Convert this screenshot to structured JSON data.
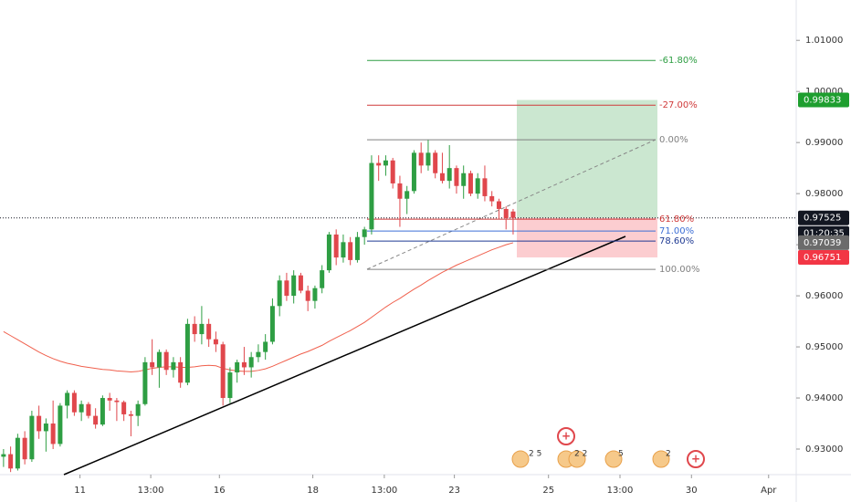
{
  "chart_data": {
    "type": "candlestick",
    "xlim": [
      -0.5,
      112
    ],
    "ylim": [
      0.925,
      1.0179
    ],
    "xticks": [
      {
        "value": 10.8,
        "label": "11"
      },
      {
        "value": 20.8,
        "label": "13:00"
      },
      {
        "value": 30.5,
        "label": "16"
      },
      {
        "value": 43.7,
        "label": "18"
      },
      {
        "value": 53.8,
        "label": "13:00"
      },
      {
        "value": 63.7,
        "label": "23"
      },
      {
        "value": 77,
        "label": "25"
      },
      {
        "value": 87.1,
        "label": "13:00"
      },
      {
        "value": 97.2,
        "label": "30"
      },
      {
        "value": 108.1,
        "label": "Apr"
      }
    ],
    "yticks": [
      {
        "value": 0.93,
        "label": "0.93000"
      },
      {
        "value": 0.94,
        "label": "0.94000"
      },
      {
        "value": 0.95,
        "label": "0.95000"
      },
      {
        "value": 0.96,
        "label": "0.96000"
      },
      {
        "value": 0.97,
        "label": "0.97000"
      },
      {
        "value": 0.98,
        "label": "0.98000"
      },
      {
        "value": 0.99,
        "label": "0.99000"
      },
      {
        "value": 1.0,
        "label": "1.00000"
      },
      {
        "value": 1.01,
        "label": "1.01000"
      }
    ],
    "up_color": "#2e9e43",
    "down_color": "#e0474c",
    "open": [
      0.9285,
      0.929,
      0.9262,
      0.9322,
      0.928,
      0.9365,
      0.9335,
      0.935,
      0.931,
      0.9385,
      0.941,
      0.9372,
      0.9388,
      0.9365,
      0.9348,
      0.94,
      0.9395,
      0.9392,
      0.9368,
      0.9365,
      0.9388,
      0.947,
      0.946,
      0.949,
      0.9455,
      0.947,
      0.943,
      0.9545,
      0.9525,
      0.9545,
      0.9515,
      0.9505,
      0.94,
      0.945,
      0.947,
      0.946,
      0.948,
      0.949,
      0.951,
      0.958,
      0.963,
      0.96,
      0.964,
      0.961,
      0.959,
      0.9615,
      0.965,
      0.972,
      0.9675,
      0.9705,
      0.967,
      0.9715,
      0.973,
      0.986,
      0.9855,
      0.9865,
      0.982,
      0.979,
      0.9805,
      0.988,
      0.9855,
      0.988,
      0.984,
      0.9825,
      0.985,
      0.9815,
      0.984,
      0.98,
      0.983,
      0.9795,
      0.9785,
      0.977,
      0.9765
    ],
    "high": [
      0.93,
      0.9305,
      0.933,
      0.9335,
      0.9375,
      0.9385,
      0.936,
      0.9395,
      0.939,
      0.9415,
      0.9415,
      0.9395,
      0.9392,
      0.938,
      0.9405,
      0.941,
      0.94,
      0.9395,
      0.9375,
      0.9395,
      0.948,
      0.9515,
      0.9495,
      0.9495,
      0.948,
      0.948,
      0.9555,
      0.956,
      0.958,
      0.9555,
      0.953,
      0.951,
      0.946,
      0.9475,
      0.95,
      0.949,
      0.9505,
      0.9525,
      0.9595,
      0.964,
      0.9645,
      0.965,
      0.9645,
      0.962,
      0.962,
      0.966,
      0.9725,
      0.973,
      0.972,
      0.9715,
      0.9725,
      0.9735,
      0.9875,
      0.9875,
      0.9875,
      0.987,
      0.9835,
      0.9815,
      0.9885,
      0.99,
      0.9905,
      0.9885,
      0.988,
      0.9895,
      0.9855,
      0.9855,
      0.9845,
      0.984,
      0.9855,
      0.9805,
      0.979,
      0.9775,
      0.977
    ],
    "low": [
      0.9265,
      0.9255,
      0.9258,
      0.927,
      0.9275,
      0.932,
      0.9295,
      0.93,
      0.9305,
      0.936,
      0.9365,
      0.9355,
      0.936,
      0.934,
      0.9345,
      0.9375,
      0.9355,
      0.9355,
      0.9325,
      0.9345,
      0.9385,
      0.9445,
      0.942,
      0.9445,
      0.944,
      0.942,
      0.9425,
      0.951,
      0.9505,
      0.95,
      0.949,
      0.9385,
      0.939,
      0.943,
      0.9445,
      0.944,
      0.947,
      0.9475,
      0.9505,
      0.956,
      0.959,
      0.9585,
      0.9605,
      0.957,
      0.9575,
      0.9605,
      0.9645,
      0.966,
      0.9665,
      0.966,
      0.9665,
      0.97,
      0.972,
      0.9825,
      0.9835,
      0.981,
      0.9735,
      0.976,
      0.98,
      0.984,
      0.9845,
      0.983,
      0.982,
      0.981,
      0.98,
      0.979,
      0.9795,
      0.979,
      0.9785,
      0.9775,
      0.975,
      0.973,
      0.972
    ],
    "close": [
      0.929,
      0.9262,
      0.9322,
      0.928,
      0.9365,
      0.9335,
      0.935,
      0.931,
      0.9385,
      0.941,
      0.9372,
      0.9388,
      0.9365,
      0.9348,
      0.94,
      0.9395,
      0.9392,
      0.9368,
      0.9365,
      0.9388,
      0.947,
      0.946,
      0.949,
      0.9455,
      0.947,
      0.943,
      0.9545,
      0.9525,
      0.9545,
      0.9515,
      0.9505,
      0.94,
      0.945,
      0.947,
      0.946,
      0.948,
      0.949,
      0.951,
      0.958,
      0.963,
      0.96,
      0.964,
      0.961,
      0.959,
      0.9615,
      0.965,
      0.972,
      0.9675,
      0.9705,
      0.967,
      0.9715,
      0.973,
      0.986,
      0.9855,
      0.9865,
      0.982,
      0.979,
      0.9805,
      0.988,
      0.9855,
      0.988,
      0.984,
      0.9825,
      0.985,
      0.9815,
      0.984,
      0.98,
      0.983,
      0.9795,
      0.9785,
      0.977,
      0.9752,
      0.97525
    ],
    "moving_average": {
      "color": "#f0604d",
      "values": [
        0.953,
        0.9522,
        0.9514,
        0.9506,
        0.9498,
        0.949,
        0.9483,
        0.9477,
        0.9472,
        0.9468,
        0.9465,
        0.9462,
        0.946,
        0.9458,
        0.9456,
        0.9455,
        0.9453,
        0.9452,
        0.9451,
        0.9452,
        0.9455,
        0.9458,
        0.946,
        0.9461,
        0.9461,
        0.946,
        0.946,
        0.9461,
        0.9463,
        0.9464,
        0.9463,
        0.9458,
        0.9455,
        0.9453,
        0.9452,
        0.9452,
        0.9454,
        0.9457,
        0.9462,
        0.9468,
        0.9474,
        0.948,
        0.9486,
        0.9491,
        0.9497,
        0.9503,
        0.9511,
        0.9518,
        0.9525,
        0.9532,
        0.954,
        0.9548,
        0.9558,
        0.9568,
        0.9578,
        0.9587,
        0.9595,
        0.9604,
        0.9613,
        0.9621,
        0.963,
        0.9638,
        0.9646,
        0.9653,
        0.966,
        0.9666,
        0.9672,
        0.9678,
        0.9684,
        0.969,
        0.9695,
        0.97,
        0.97039
      ]
    },
    "fib_levels": [
      {
        "label": "-61.80%",
        "value": 1.00607,
        "color": "#2e9e43"
      },
      {
        "label": "-27.00%",
        "value": 0.99732,
        "color": "#d03a3a"
      },
      {
        "label": "0.00%",
        "value": 0.99054,
        "color": "#808080"
      },
      {
        "label": "61.80%",
        "value": 0.975,
        "color": "#d03a3a"
      },
      {
        "label": "71.00%",
        "value": 0.97268,
        "color": "#3d6fd6"
      },
      {
        "label": "78.60%",
        "value": 0.97071,
        "color": "#1f3a93"
      },
      {
        "label": "100.00%",
        "value": 0.96518,
        "color": "#808080"
      }
    ],
    "position": {
      "target": 0.99833,
      "entry": 0.97525,
      "stop": 0.96751
    },
    "price_labels": [
      {
        "value": 0.99833,
        "label": "0.99833",
        "color": "#1e9e2f"
      },
      {
        "value": 0.97525,
        "label": "0.97525",
        "color": "#131722"
      },
      {
        "value": 0.97039,
        "label": "0.97039",
        "color": "#6b6b6b"
      },
      {
        "value": 0.96751,
        "label": "0.96751",
        "color": "#f23645"
      }
    ],
    "countdown": "01:20:35",
    "events": [
      "2 5",
      "2 2",
      "5",
      "2"
    ]
  }
}
